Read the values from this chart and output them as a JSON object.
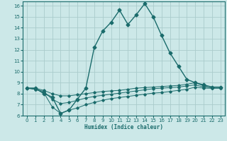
{
  "title": "",
  "xlabel": "Humidex (Indice chaleur)",
  "background_color": "#cce8e8",
  "grid_color": "#aacccc",
  "line_color": "#1a6b6b",
  "xlim": [
    -0.5,
    23.5
  ],
  "ylim": [
    6,
    16.4
  ],
  "xticks": [
    0,
    1,
    2,
    3,
    4,
    5,
    6,
    7,
    8,
    9,
    10,
    11,
    12,
    13,
    14,
    15,
    16,
    17,
    18,
    19,
    20,
    21,
    22,
    23
  ],
  "yticks": [
    6,
    7,
    8,
    9,
    10,
    11,
    12,
    13,
    14,
    15,
    16
  ],
  "series": [
    {
      "x": [
        0,
        1,
        2,
        3,
        4,
        5,
        6,
        7,
        8,
        9,
        10,
        11,
        12,
        13,
        14,
        15,
        16,
        17,
        18,
        19,
        20,
        21,
        22,
        23
      ],
      "y": [
        8.5,
        8.5,
        8.0,
        7.7,
        6.2,
        6.5,
        7.5,
        8.5,
        12.2,
        13.7,
        14.5,
        15.6,
        14.3,
        15.2,
        16.2,
        15.0,
        13.3,
        11.7,
        10.5,
        9.3,
        9.0,
        8.8,
        8.6,
        8.6
      ]
    },
    {
      "x": [
        0,
        1,
        2,
        3,
        4,
        5,
        6,
        7,
        8,
        9,
        10,
        11,
        12,
        13,
        14,
        15,
        16,
        17,
        18,
        19,
        20,
        21,
        22,
        23
      ],
      "y": [
        8.5,
        8.5,
        8.3,
        8.0,
        7.8,
        7.8,
        7.9,
        8.0,
        8.1,
        8.2,
        8.25,
        8.3,
        8.4,
        8.5,
        8.55,
        8.6,
        8.65,
        8.7,
        8.75,
        8.85,
        9.0,
        8.7,
        8.6,
        8.6
      ]
    },
    {
      "x": [
        0,
        1,
        2,
        3,
        4,
        5,
        6,
        7,
        8,
        9,
        10,
        11,
        12,
        13,
        14,
        15,
        16,
        17,
        18,
        19,
        20,
        21,
        22,
        23
      ],
      "y": [
        8.5,
        8.4,
        8.2,
        7.5,
        7.1,
        7.2,
        7.4,
        7.6,
        7.75,
        7.85,
        7.95,
        8.05,
        8.15,
        8.25,
        8.35,
        8.45,
        8.5,
        8.55,
        8.6,
        8.7,
        8.8,
        8.6,
        8.5,
        8.5
      ]
    },
    {
      "x": [
        0,
        1,
        2,
        3,
        4,
        5,
        6,
        7,
        8,
        9,
        10,
        11,
        12,
        13,
        14,
        15,
        16,
        17,
        18,
        19,
        20,
        21,
        22,
        23
      ],
      "y": [
        8.5,
        8.4,
        8.1,
        6.8,
        6.2,
        6.5,
        6.7,
        7.0,
        7.2,
        7.4,
        7.55,
        7.65,
        7.75,
        7.85,
        7.95,
        8.05,
        8.1,
        8.2,
        8.3,
        8.4,
        8.6,
        8.5,
        8.5,
        8.5
      ]
    }
  ]
}
